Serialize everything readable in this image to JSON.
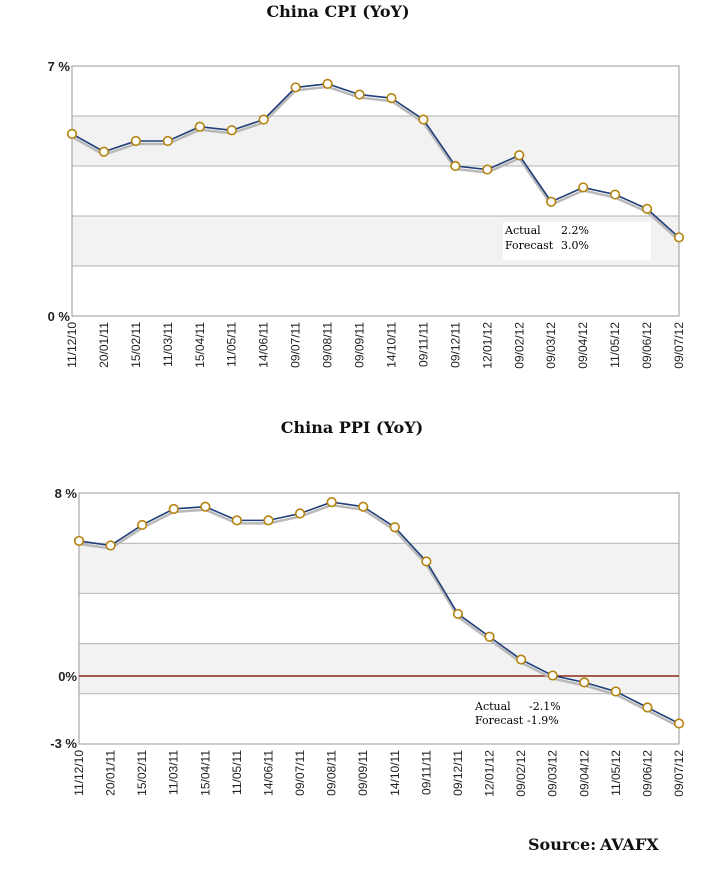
{
  "chart_data": [
    {
      "type": "line",
      "title": "China CPI (YoY)",
      "ylim": [
        0,
        7
      ],
      "ytick_labels": [
        "7 %",
        "0 %"
      ],
      "categories": [
        "11/12/10",
        "20/01/11",
        "15/02/11",
        "11/03/11",
        "15/04/11",
        "11/05/11",
        "14/06/11",
        "09/07/11",
        "09/08/11",
        "09/09/11",
        "14/10/11",
        "09/11/11",
        "09/12/11",
        "12/01/12",
        "09/02/12",
        "09/03/12",
        "09/04/12",
        "11/05/12",
        "09/06/12",
        "09/07/12"
      ],
      "values": [
        5.1,
        4.6,
        4.9,
        4.9,
        5.3,
        5.2,
        5.5,
        6.4,
        6.5,
        6.2,
        6.1,
        5.5,
        4.2,
        4.1,
        4.5,
        3.2,
        3.6,
        3.4,
        3.0,
        2.2
      ],
      "annotation": {
        "actual_label": "Actual",
        "actual_value": "2.2%",
        "forecast_label": "Forecast",
        "forecast_value": "3.0%"
      },
      "colors": {
        "line": "#1f3f7a",
        "marker_fill": "#ffffff",
        "marker_edge": "#b5820e",
        "shadow": "#b9b9b9",
        "band": "#f2f2f2"
      }
    },
    {
      "type": "line",
      "title": "China PPI (YoY)",
      "ylim": [
        -3,
        8
      ],
      "ytick_labels": [
        "8 %",
        "0%",
        "-3 %"
      ],
      "categories": [
        "11/12/10",
        "20/01/11",
        "15/02/11",
        "11/03/11",
        "15/04/11",
        "11/05/11",
        "14/06/11",
        "09/07/11",
        "09/08/11",
        "09/09/11",
        "14/10/11",
        "09/11/11",
        "09/12/11",
        "12/01/12",
        "09/02/12",
        "09/03/12",
        "09/04/12",
        "11/05/12",
        "09/06/12",
        "09/07/12"
      ],
      "values": [
        5.9,
        5.7,
        6.6,
        7.3,
        7.4,
        6.8,
        6.8,
        7.1,
        7.6,
        7.4,
        6.5,
        5.0,
        2.7,
        1.7,
        0.7,
        0.0,
        -0.3,
        -0.7,
        -1.4,
        -2.1
      ],
      "zero_line": true,
      "annotation": {
        "actual_label": "Actual",
        "actual_value": "-2.1%",
        "forecast_label": "Forecast",
        "forecast_value": "-1.9%"
      },
      "colors": {
        "line": "#1f3f7a",
        "marker_fill": "#ffffff",
        "marker_edge": "#b5820e",
        "shadow": "#b9b9b9",
        "band": "#f2f2f2",
        "zero_line": "#8b2a12"
      }
    }
  ],
  "source": {
    "label": "Source:",
    "value": "AVAFX"
  }
}
